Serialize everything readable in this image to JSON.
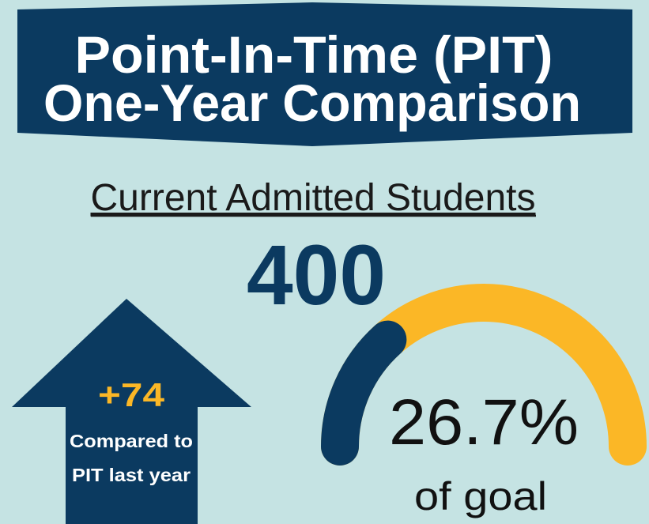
{
  "header": {
    "title_line1": "Point-In-Time (PIT)",
    "title_line2": "One-Year Comparison"
  },
  "metric": {
    "label": "Current Admitted Students",
    "value": 400
  },
  "change": {
    "value": "+74",
    "caption_line1": "Compared to",
    "caption_line2": "PIT last year"
  },
  "gauge": {
    "value": 26.7,
    "value_label": "26.7%",
    "range": [
      0,
      100
    ],
    "caption": "of goal",
    "fill_color": "#0b3a60",
    "track_color": "#fbb726"
  }
}
